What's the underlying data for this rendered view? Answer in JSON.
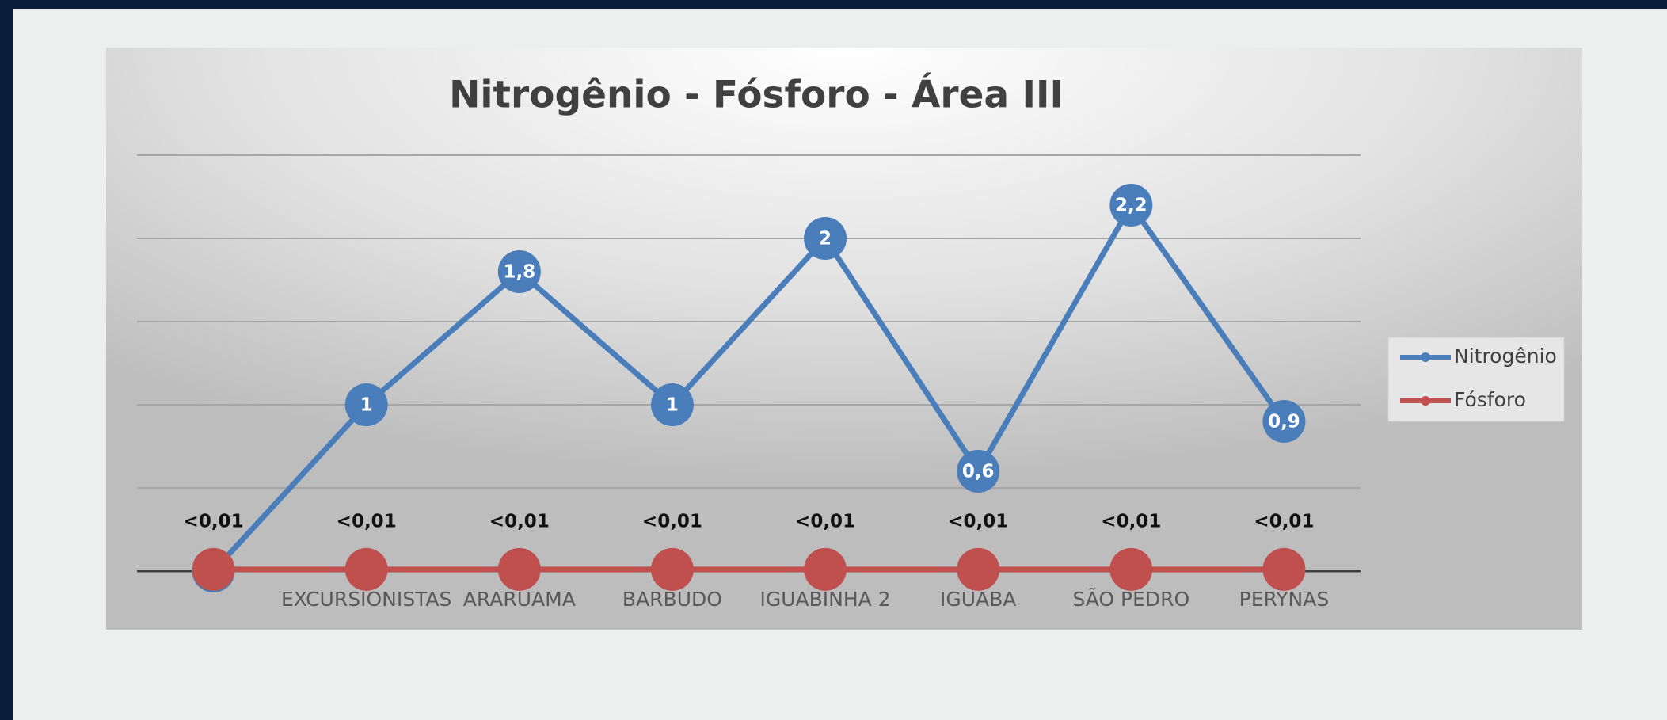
{
  "chart_data": {
    "type": "line",
    "title": "Nitrogênio - Fósforo - Área III",
    "categories": [
      null,
      "EXCURSIONISTAS",
      "ARARUAMA",
      "BARBUDO",
      "IGUABINHA 2",
      "IGUABA",
      "SÃO PEDRO",
      "PERYNAS"
    ],
    "series": [
      {
        "name": "Nitrogênio",
        "color": "#4a7ebb",
        "values": [
          0,
          1,
          1.8,
          1,
          2,
          0.6,
          2.2,
          0.9
        ],
        "value_labels": [
          null,
          "1",
          "1,8",
          "1",
          "2",
          "0,6",
          "2,2",
          "0,9"
        ]
      },
      {
        "name": "Fósforo",
        "color": "#c0504d",
        "values": [
          0.01,
          0.01,
          0.01,
          0.01,
          0.01,
          0.01,
          0.01,
          0.01
        ],
        "value_labels": [
          "<0,01",
          "<0,01",
          "<0,01",
          "<0,01",
          "<0,01",
          "<0,01",
          "<0,01",
          "<0,01"
        ]
      }
    ],
    "ylim": [
      0,
      2.5
    ],
    "yticks": [
      0,
      0.5,
      1,
      1.5,
      2,
      2.5
    ],
    "grid": true,
    "legend": "right"
  }
}
